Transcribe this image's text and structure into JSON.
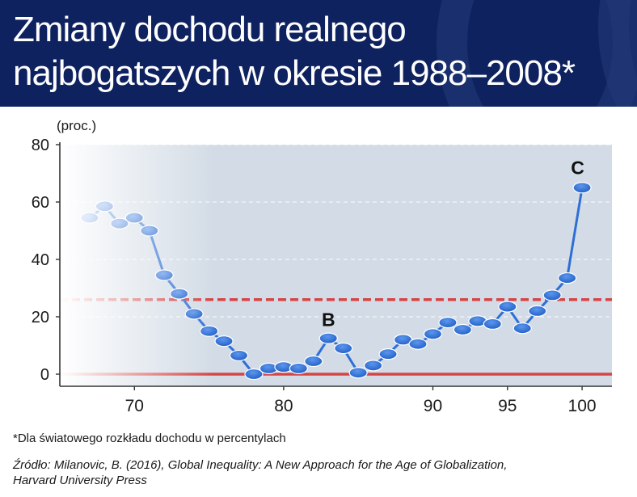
{
  "header": {
    "title_line1": "Zmiany dochodu realnego",
    "title_line2": "najbogatszych w okresie 1988–2008*",
    "background_color": "#0f2260"
  },
  "chart_data": {
    "type": "line",
    "ylabel": "(proc.)",
    "xlim": [
      65,
      102
    ],
    "ylim": [
      0,
      80
    ],
    "yticks": [
      0,
      20,
      40,
      60,
      80
    ],
    "xticks": [
      70,
      80,
      90,
      95,
      100
    ],
    "grid": true,
    "series": [
      {
        "color": "#2e6fd6",
        "points": [
          [
            67,
            54.5
          ],
          [
            68,
            58.5
          ],
          [
            69,
            52.5
          ],
          [
            70,
            54.5
          ],
          [
            71,
            50
          ],
          [
            72,
            34.5
          ],
          [
            73,
            28
          ],
          [
            74,
            21
          ],
          [
            75,
            15
          ],
          [
            76,
            11.5
          ],
          [
            77,
            6.5
          ],
          [
            78,
            0
          ],
          [
            79,
            2
          ],
          [
            80,
            2.5
          ],
          [
            81,
            2
          ],
          [
            82,
            4.5
          ],
          [
            83,
            12.5
          ],
          [
            84,
            9
          ],
          [
            85,
            0.5
          ],
          [
            86,
            3
          ],
          [
            87,
            7
          ],
          [
            88,
            12
          ],
          [
            89,
            10.5
          ],
          [
            90,
            14
          ],
          [
            91,
            18
          ],
          [
            92,
            15.5
          ],
          [
            93,
            18.5
          ],
          [
            94,
            17.5
          ],
          [
            95,
            23.5
          ],
          [
            96,
            16
          ],
          [
            97,
            22
          ],
          [
            98,
            27.5
          ],
          [
            99,
            33.5
          ],
          [
            100,
            65
          ]
        ]
      }
    ],
    "reference_lines": [
      {
        "y": 26,
        "color": "#d64545",
        "style": "dashed"
      },
      {
        "y": 0,
        "color": "#d64545",
        "style": "solid"
      }
    ],
    "annotations": [
      {
        "text": "B",
        "x": 83,
        "y": 19
      },
      {
        "text": "C",
        "x": 99.7,
        "y": 72
      }
    ],
    "plot_background": "#d3dce6"
  },
  "footnote": "*Dla światowego rozkładu dochodu w percentylach",
  "source_line1": "Źródło: Milanovic, B. (2016), Global Inequality: A New Approach for the Age of Globalization,",
  "source_line2": "Harvard University Press"
}
